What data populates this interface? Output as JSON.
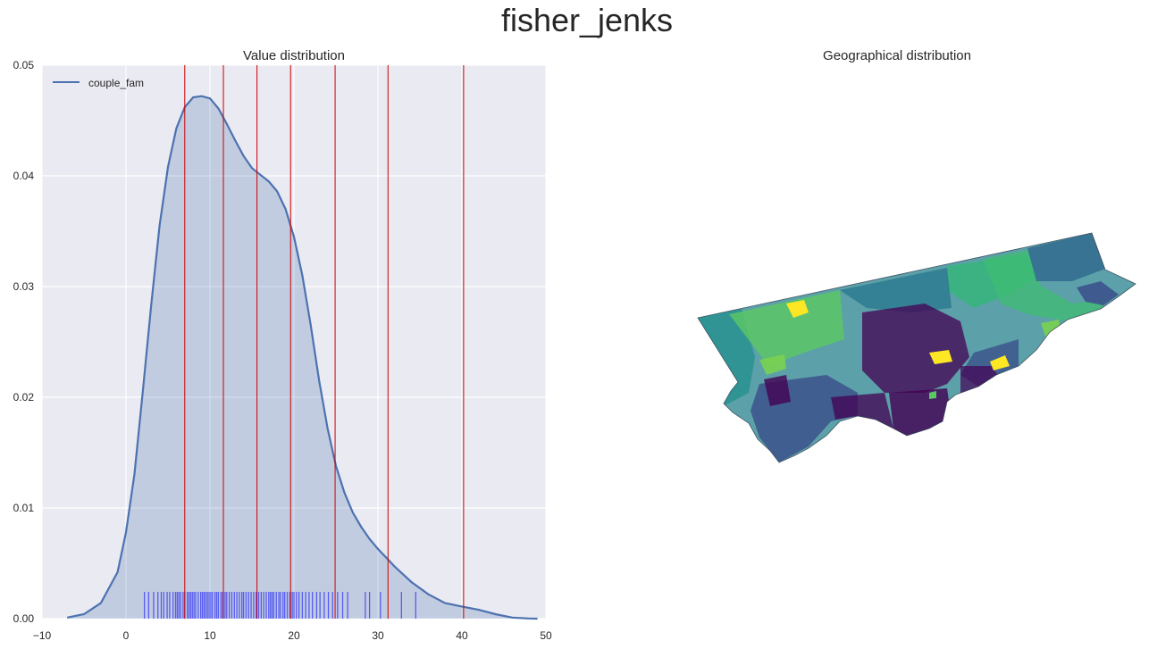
{
  "figure": {
    "suptitle": "fisher_jenks"
  },
  "chart_data": [
    {
      "type": "area",
      "title": "Value distribution",
      "xlabel": "",
      "ylabel": "",
      "xlim": [
        -10,
        50
      ],
      "ylim": [
        0,
        0.05
      ],
      "xticks": [
        -10,
        0,
        10,
        20,
        30,
        40,
        50
      ],
      "yticks": [
        0.0,
        0.01,
        0.02,
        0.03,
        0.04,
        0.05
      ],
      "xtick_labels": [
        "−10",
        "0",
        "10",
        "20",
        "30",
        "40",
        "50"
      ],
      "ytick_labels": [
        "0.00",
        "0.01",
        "0.02",
        "0.03",
        "0.04",
        "0.05"
      ],
      "grid": true,
      "legend_position": "top-left",
      "series": [
        {
          "name": "couple_fam",
          "color": "#4c72b0",
          "x": [
            -7,
            -5,
            -3,
            -1,
            0,
            1,
            2,
            3,
            4,
            5,
            6,
            7,
            8,
            9,
            10,
            11,
            12,
            13,
            14,
            15,
            16,
            17,
            18,
            19,
            20,
            21,
            22,
            23,
            24,
            25,
            26,
            27,
            28,
            29,
            30,
            31,
            32,
            33,
            34,
            36,
            38,
            40,
            42,
            44,
            46,
            48,
            49
          ],
          "y": [
            0.0001,
            0.0004,
            0.0014,
            0.0042,
            0.0078,
            0.013,
            0.0205,
            0.0283,
            0.0355,
            0.0408,
            0.0443,
            0.0462,
            0.0471,
            0.0472,
            0.047,
            0.0461,
            0.0447,
            0.0432,
            0.0418,
            0.0407,
            0.0401,
            0.0395,
            0.0386,
            0.037,
            0.0345,
            0.031,
            0.0265,
            0.0215,
            0.0172,
            0.0138,
            0.0114,
            0.0096,
            0.0083,
            0.0072,
            0.0063,
            0.0055,
            0.0047,
            0.004,
            0.0033,
            0.0022,
            0.0014,
            0.0011,
            0.0008,
            0.0004,
            0.0001,
            2e-05,
            0.0
          ]
        }
      ],
      "rug": {
        "color": "#0000ff",
        "values": [
          2.2,
          2.7,
          3.3,
          3.8,
          4.2,
          4.5,
          4.9,
          5.2,
          5.6,
          5.9,
          6.1,
          6.3,
          6.5,
          6.8,
          7.0,
          7.3,
          7.5,
          7.7,
          7.9,
          8.1,
          8.3,
          8.6,
          8.9,
          9.1,
          9.3,
          9.5,
          9.7,
          9.9,
          10.1,
          10.3,
          10.6,
          10.8,
          11.0,
          11.3,
          11.5,
          11.8,
          12.0,
          12.3,
          12.6,
          12.9,
          13.2,
          13.5,
          13.8,
          14.0,
          14.3,
          14.6,
          14.9,
          15.2,
          15.5,
          15.8,
          16.1,
          16.4,
          16.7,
          17.0,
          17.2,
          17.4,
          17.6,
          17.9,
          18.2,
          18.4,
          18.7,
          18.9,
          19.2,
          19.5,
          19.8,
          20.0,
          20.3,
          20.6,
          21.0,
          21.4,
          21.8,
          22.2,
          22.7,
          23.1,
          23.6,
          24.1,
          24.6,
          25.2,
          25.8,
          26.4,
          28.5,
          29.0,
          30.3,
          32.8,
          34.5
        ]
      },
      "class_breaks": {
        "color": "#cc0000",
        "values": [
          7.0,
          11.6,
          15.6,
          19.6,
          24.9,
          31.2,
          40.2
        ]
      }
    },
    {
      "type": "map",
      "title": "Geographical distribution",
      "palette": [
        "#440154",
        "#3b528b",
        "#21908d",
        "#5dc863",
        "#fde725"
      ]
    }
  ]
}
